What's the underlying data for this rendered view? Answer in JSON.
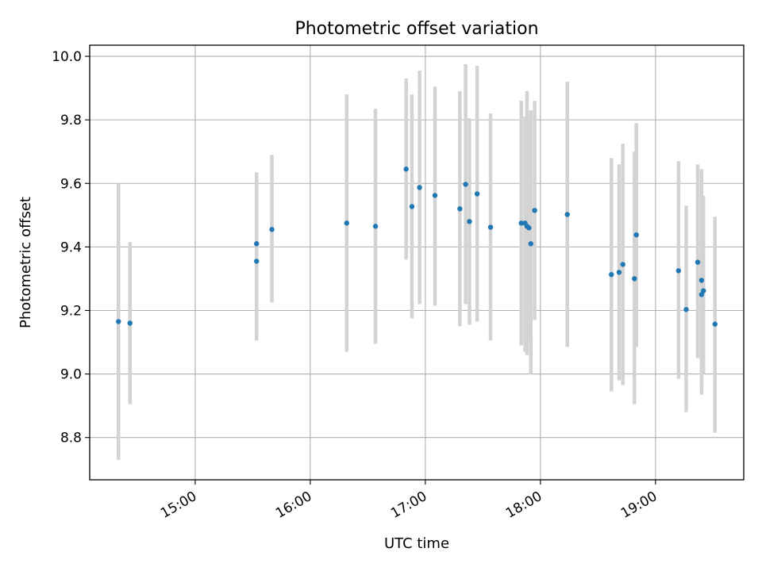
{
  "chart_data": {
    "type": "scatter",
    "title": "Photometric offset variation",
    "xlabel": "UTC time",
    "ylabel": "Photometric offset",
    "x_is_time": true,
    "xlim": [
      "14:05",
      "19:46"
    ],
    "ylim": [
      8.667,
      10.035
    ],
    "xticks": [
      "15:00",
      "16:00",
      "17:00",
      "18:00",
      "19:00"
    ],
    "yticks": [
      8.8,
      9.0,
      9.2,
      9.4,
      9.6,
      9.8,
      10.0
    ],
    "grid": true,
    "marker_color": "#1f77b4",
    "errorbar_color": "#d3d3d3",
    "points": [
      {
        "x": "14:20",
        "y": 9.165,
        "lo": 8.73,
        "hi": 9.6
      },
      {
        "x": "14:26",
        "y": 9.16,
        "lo": 8.905,
        "hi": 9.415
      },
      {
        "x": "15:32",
        "y": 9.41,
        "lo": 9.185,
        "hi": 9.635
      },
      {
        "x": "15:32",
        "y": 9.355,
        "lo": 9.105,
        "hi": 9.605
      },
      {
        "x": "15:40",
        "y": 9.455,
        "lo": 9.225,
        "hi": 9.69
      },
      {
        "x": "16:19",
        "y": 9.475,
        "lo": 9.07,
        "hi": 9.88
      },
      {
        "x": "16:34",
        "y": 9.465,
        "lo": 9.095,
        "hi": 9.835
      },
      {
        "x": "16:50",
        "y": 9.645,
        "lo": 9.36,
        "hi": 9.93
      },
      {
        "x": "16:53",
        "y": 9.527,
        "lo": 9.175,
        "hi": 9.88
      },
      {
        "x": "16:57",
        "y": 9.587,
        "lo": 9.22,
        "hi": 9.955
      },
      {
        "x": "17:05",
        "y": 9.562,
        "lo": 9.215,
        "hi": 9.905
      },
      {
        "x": "17:18",
        "y": 9.52,
        "lo": 9.15,
        "hi": 9.89
      },
      {
        "x": "17:21",
        "y": 9.597,
        "lo": 9.22,
        "hi": 9.975
      },
      {
        "x": "17:23",
        "y": 9.48,
        "lo": 9.155,
        "hi": 9.805
      },
      {
        "x": "17:27",
        "y": 9.567,
        "lo": 9.165,
        "hi": 9.97
      },
      {
        "x": "17:34",
        "y": 9.462,
        "lo": 9.105,
        "hi": 9.82
      },
      {
        "x": "17:50",
        "y": 9.475,
        "lo": 9.09,
        "hi": 9.86
      },
      {
        "x": "17:52",
        "y": 9.475,
        "lo": 9.07,
        "hi": 9.81
      },
      {
        "x": "17:53",
        "y": 9.465,
        "lo": 9.06,
        "hi": 9.89
      },
      {
        "x": "17:54",
        "y": 9.46,
        "lo": 9.105,
        "hi": 9.82
      },
      {
        "x": "17:55",
        "y": 9.41,
        "lo": 9.0,
        "hi": 9.83
      },
      {
        "x": "17:57",
        "y": 9.515,
        "lo": 9.17,
        "hi": 9.86
      },
      {
        "x": "18:14",
        "y": 9.502,
        "lo": 9.085,
        "hi": 9.92
      },
      {
        "x": "18:37",
        "y": 9.313,
        "lo": 8.945,
        "hi": 9.68
      },
      {
        "x": "18:41",
        "y": 9.32,
        "lo": 8.98,
        "hi": 9.66
      },
      {
        "x": "18:43",
        "y": 9.345,
        "lo": 8.965,
        "hi": 9.725
      },
      {
        "x": "18:49",
        "y": 9.3,
        "lo": 8.905,
        "hi": 9.7
      },
      {
        "x": "18:50",
        "y": 9.438,
        "lo": 9.085,
        "hi": 9.79
      },
      {
        "x": "19:12",
        "y": 9.325,
        "lo": 8.985,
        "hi": 9.67
      },
      {
        "x": "19:16",
        "y": 9.203,
        "lo": 8.88,
        "hi": 9.53
      },
      {
        "x": "19:22",
        "y": 9.352,
        "lo": 9.05,
        "hi": 9.66
      },
      {
        "x": "19:24",
        "y": 9.295,
        "lo": 8.955,
        "hi": 9.645
      },
      {
        "x": "19:24",
        "y": 9.25,
        "lo": 8.935,
        "hi": 9.585
      },
      {
        "x": "19:25",
        "y": 9.262,
        "lo": 9.0,
        "hi": 9.56
      },
      {
        "x": "19:31",
        "y": 9.157,
        "lo": 8.815,
        "hi": 9.495
      }
    ]
  }
}
